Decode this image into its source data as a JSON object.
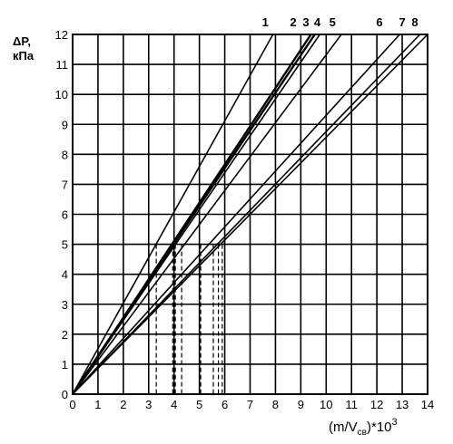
{
  "chart_data": {
    "type": "line",
    "ylabel_line1": "ΔP,",
    "ylabel_line2": "кПа",
    "xlabel": "(m/V",
    "xlabel_sub": "св",
    "xlabel_suffix": ")*10",
    "xlabel_sup": "3",
    "xlim": [
      0,
      14
    ],
    "ylim": [
      0,
      12
    ],
    "x_ticks": [
      "0",
      "1",
      "2",
      "3",
      "4",
      "5",
      "6",
      "7",
      "8",
      "9",
      "10",
      "11",
      "12",
      "13",
      "14"
    ],
    "y_ticks": [
      "0",
      "1",
      "2",
      "3",
      "4",
      "5",
      "6",
      "7",
      "8",
      "9",
      "10",
      "11",
      "12"
    ],
    "grid": true,
    "series": [
      {
        "name": "1",
        "x": [
          0,
          7.9
        ],
        "y": [
          0,
          12
        ]
      },
      {
        "name": "2",
        "x": [
          0,
          9.4
        ],
        "y": [
          0,
          12
        ]
      },
      {
        "name": "3",
        "x": [
          0,
          9.55
        ],
        "y": [
          0,
          12
        ]
      },
      {
        "name": "4",
        "x": [
          0,
          9.75
        ],
        "y": [
          0,
          12
        ]
      },
      {
        "name": "5",
        "x": [
          0,
          10.6
        ],
        "y": [
          0,
          12
        ]
      },
      {
        "name": "6",
        "x": [
          0,
          12.9
        ],
        "y": [
          0,
          12
        ]
      },
      {
        "name": "7",
        "x": [
          0,
          13.7
        ],
        "y": [
          0,
          12
        ]
      },
      {
        "name": "8",
        "x": [
          0,
          14.0
        ],
        "y": [
          0,
          12
        ]
      }
    ],
    "reference_level_y": 5,
    "reference_drop_x": [
      3.3,
      3.95,
      4.05,
      4.3,
      5.05,
      5.55,
      5.75,
      5.9
    ]
  }
}
